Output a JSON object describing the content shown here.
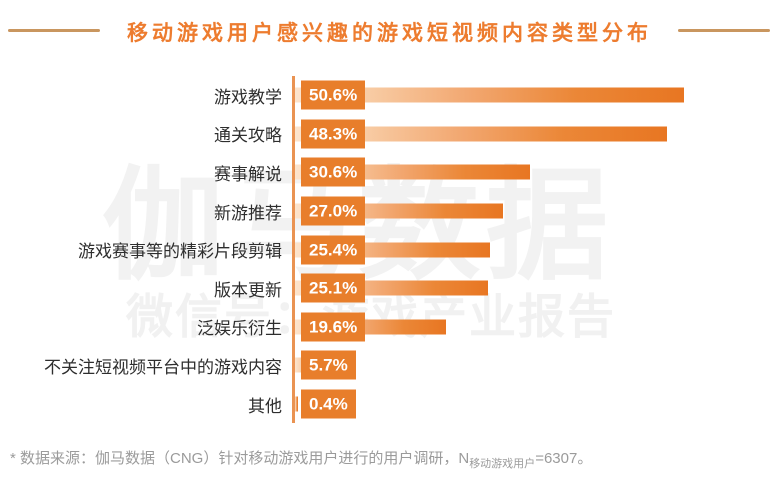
{
  "header": {
    "title": "移动游戏用户感兴趣的游戏短视频内容类型分布"
  },
  "watermark": {
    "line1": "伽马数据",
    "line2": "微信号：游戏产业报告"
  },
  "chart_data": {
    "type": "bar",
    "orientation": "horizontal",
    "title": "移动游戏用户感兴趣的游戏短视频内容类型分布",
    "xlabel": "",
    "ylabel": "",
    "grid": false,
    "legend": null,
    "xlim": [
      0,
      52
    ],
    "categories": [
      "游戏教学",
      "通关攻略",
      "赛事解说",
      "新游推荐",
      "游戏赛事等的精彩片段剪辑",
      "版本更新",
      "泛娱乐衍生",
      "不关注短视频平台中的游戏内容",
      "其他"
    ],
    "values": [
      50.6,
      48.3,
      30.6,
      27.0,
      25.4,
      25.1,
      19.6,
      5.7,
      0.4
    ],
    "value_labels": [
      "50.6%",
      "48.3%",
      "30.6%",
      "27.0%",
      "25.4%",
      "25.1%",
      "19.6%",
      "5.7%",
      "0.4%"
    ],
    "colors": {
      "title": "#ed7c2f",
      "value_box": "#e87e2b",
      "bar_solid": "#e87622",
      "bar_gradient_start": "#fce4cd",
      "axis_line": "#ea9352",
      "label_text": "#2e2e2e",
      "footer_text": "#9b9b9b",
      "watermark": "#f2f2f2"
    }
  },
  "footer": {
    "note_prefix": "*  数据来源：伽马数据（CNG）针对移动游戏用户进行的用户调研，N",
    "note_sub": "移动游戏用户",
    "note_suffix": "=6307。"
  }
}
